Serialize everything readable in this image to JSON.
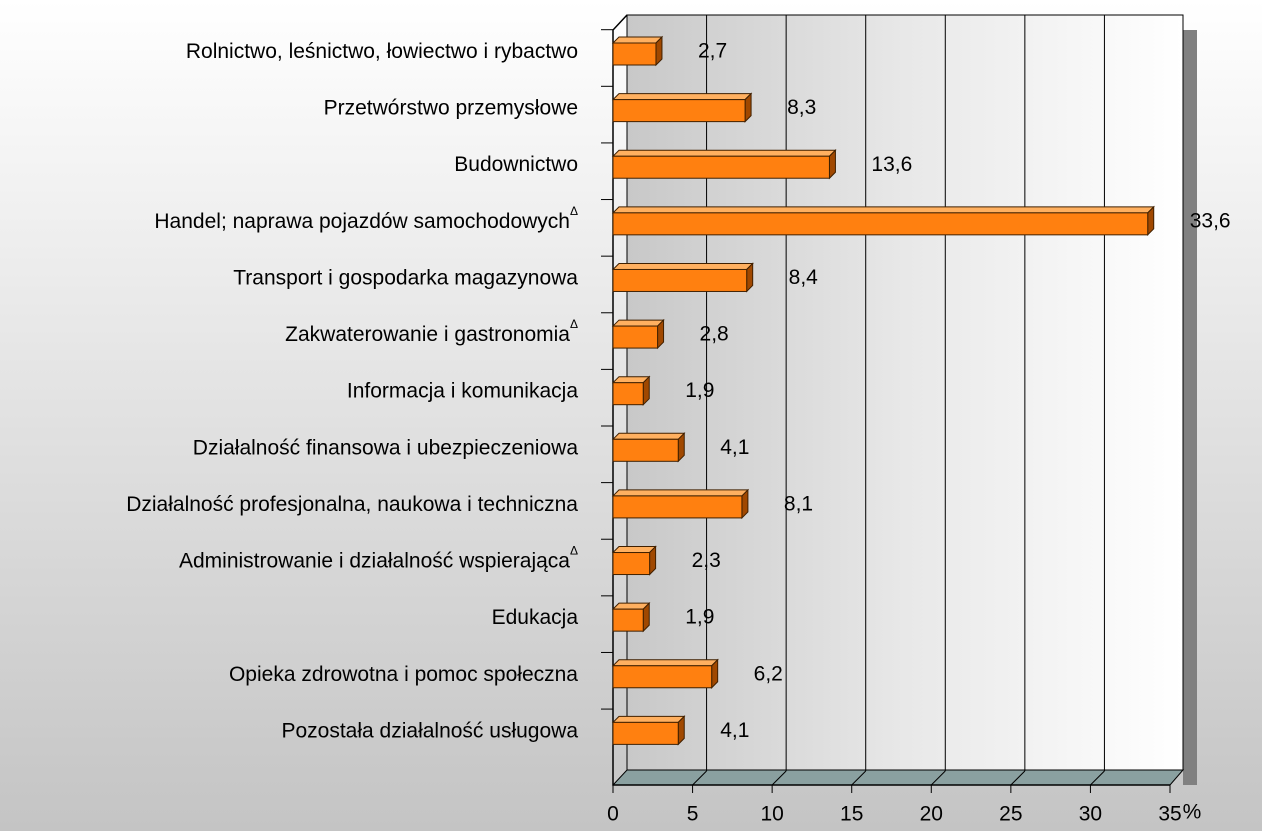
{
  "chart_data": {
    "type": "bar",
    "orientation": "horizontal",
    "categories": [
      "Rolnictwo, leśnictwo, łowiectwo i rybactwo",
      "Przetwórstwo przemysłowe",
      "Budownictwo",
      "Handel; naprawa pojazdów samochodowych",
      "Transport i gospodarka magazynowa",
      "Zakwaterowanie i gastronomia",
      "Informacja i komunikacja",
      "Działalność finansowa i ubezpieczeniowa",
      "Działalność profesjonalna, naukowa i techniczna",
      "Administrowanie i działalność wspierająca",
      "Edukacja",
      "Opieka zdrowotna i pomoc społeczna",
      "Pozostała działalność usługowa"
    ],
    "category_notes": [
      null,
      null,
      null,
      "Δ",
      null,
      "Δ",
      null,
      null,
      null,
      "Δ",
      null,
      null,
      null
    ],
    "values": [
      2.7,
      8.3,
      13.6,
      33.6,
      8.4,
      2.8,
      1.9,
      4.1,
      8.1,
      2.3,
      1.9,
      6.2,
      4.1
    ],
    "value_labels": [
      "2,7",
      "8,3",
      "13,6",
      "33,6",
      "8,4",
      "2,8",
      "1,9",
      "4,1",
      "8,1",
      "2,3",
      "1,9",
      "6,2",
      "4,1"
    ],
    "color": "#ff8010",
    "x_label": "%",
    "xlim": [
      0,
      35
    ],
    "xticks": [
      0,
      5,
      10,
      15,
      20,
      25,
      30,
      35
    ],
    "grid": true
  }
}
